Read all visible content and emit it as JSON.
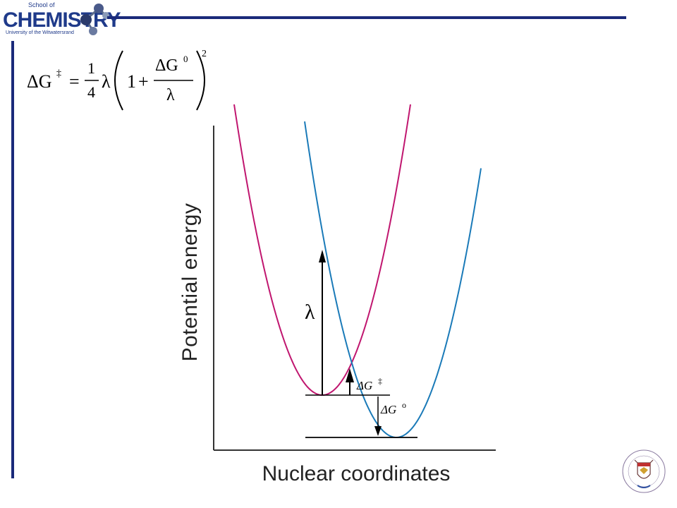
{
  "header": {
    "logo": {
      "school_text": "School of",
      "name_text": "CHEMISTRY",
      "university_text": "University of the Witwatersrand"
    }
  },
  "formula": {
    "lhs": "ΔG",
    "lhs_sup": "‡",
    "equals": "=",
    "frac_num": "1",
    "frac_den": "4",
    "lambda": "λ",
    "one": "1",
    "plus": "+",
    "inner_num": "ΔG",
    "inner_num_sup": "0",
    "inner_den": "λ",
    "exponent": "2"
  },
  "diagram": {
    "y_axis_label": "Potential energy",
    "x_axis_label": "Nuclear coordinates",
    "lambda_label": "λ",
    "dg_activation_label": "ΔG",
    "dg_activation_sup": "‡",
    "dg_standard_label": "ΔG",
    "dg_standard_sup": "o",
    "colors": {
      "reactant_curve": "#c0166f",
      "product_curve": "#1a7ab8",
      "axes": "#333333",
      "lines": "#000000"
    }
  },
  "footer": {
    "crest_icon": "university-crest-icon",
    "crest_ring_text": "UNIVERSITY OF THE WITWATERSRAND JOHANNESBURG"
  },
  "accent_color": "#1a2a7a"
}
